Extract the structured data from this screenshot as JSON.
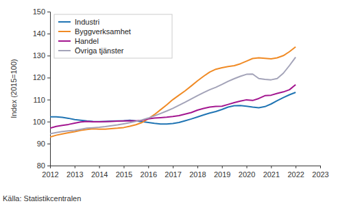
{
  "chart_data": {
    "type": "line",
    "ylabel": "Index (2015=100)",
    "annotations": [
      "Källa: Statistikcentralen"
    ],
    "x": [
      2012,
      2012.25,
      2012.5,
      2012.75,
      2013,
      2013.25,
      2013.5,
      2013.75,
      2014,
      2014.25,
      2014.5,
      2014.75,
      2015,
      2015.25,
      2015.5,
      2015.75,
      2016,
      2016.25,
      2016.5,
      2016.75,
      2017,
      2017.25,
      2017.5,
      2017.75,
      2018,
      2018.25,
      2018.5,
      2018.75,
      2019,
      2019.25,
      2019.5,
      2019.75,
      2020,
      2020.25,
      2020.5,
      2020.75,
      2021,
      2021.25,
      2021.5,
      2021.75,
      2022
    ],
    "series": [
      {
        "name": "Industri",
        "color": "#1f74b3",
        "values": [
          102.2,
          102.2,
          101.9,
          101.5,
          100.9,
          100.6,
          100.3,
          100.1,
          100.0,
          100.1,
          100.2,
          100.3,
          100.4,
          100.6,
          100.3,
          100.0,
          99.6,
          99.2,
          98.9,
          98.9,
          99.1,
          99.6,
          100.4,
          101.2,
          102.1,
          103.0,
          103.9,
          104.6,
          105.5,
          106.6,
          107.2,
          107.3,
          107.0,
          106.6,
          106.3,
          106.8,
          108.0,
          109.5,
          110.9,
          112.2,
          113.3
        ]
      },
      {
        "name": "Byggverksamhet",
        "color": "#f08a24",
        "values": [
          93.0,
          93.8,
          94.4,
          94.9,
          95.4,
          96.0,
          96.4,
          96.7,
          96.6,
          96.6,
          96.8,
          97.0,
          97.3,
          97.9,
          98.6,
          99.6,
          101.3,
          103.2,
          105.4,
          107.6,
          110.0,
          112.0,
          114.0,
          116.2,
          118.5,
          120.6,
          122.5,
          123.8,
          124.5,
          125.0,
          125.4,
          126.3,
          127.5,
          128.7,
          129.0,
          128.8,
          128.5,
          129.0,
          130.0,
          131.8,
          134.0
        ]
      },
      {
        "name": "Handel",
        "color": "#a3158f",
        "values": [
          97.0,
          97.8,
          98.3,
          98.7,
          99.3,
          99.8,
          100.1,
          99.9,
          99.9,
          100.0,
          100.1,
          100.2,
          100.3,
          100.4,
          100.3,
          100.6,
          101.2,
          101.6,
          101.8,
          102.0,
          102.3,
          102.7,
          103.4,
          104.1,
          105.2,
          106.0,
          106.6,
          106.9,
          107.0,
          107.8,
          108.6,
          109.3,
          109.9,
          109.6,
          110.5,
          111.8,
          112.0,
          112.8,
          113.5,
          114.5,
          116.8
        ]
      },
      {
        "name": "Övriga tjänster",
        "color": "#a3a3b8",
        "values": [
          94.5,
          95.0,
          95.5,
          95.8,
          96.0,
          96.5,
          97.0,
          97.2,
          97.4,
          97.7,
          98.1,
          98.5,
          99.0,
          99.5,
          100.1,
          100.8,
          101.6,
          102.6,
          103.7,
          104.8,
          106.0,
          107.4,
          108.8,
          110.3,
          111.8,
          113.2,
          114.5,
          115.6,
          116.9,
          118.3,
          119.5,
          120.6,
          121.5,
          121.6,
          119.6,
          119.2,
          119.0,
          119.6,
          122.0,
          125.5,
          129.3
        ]
      }
    ],
    "xlim": [
      2012,
      2023
    ],
    "xticks": [
      2012,
      2013,
      2014,
      2015,
      2016,
      2017,
      2018,
      2019,
      2020,
      2021,
      2022,
      2023
    ],
    "ylim": [
      80,
      150
    ],
    "yticks": [
      80,
      90,
      100,
      110,
      120,
      130,
      140,
      150
    ],
    "grid": false,
    "legend": "upper left"
  }
}
